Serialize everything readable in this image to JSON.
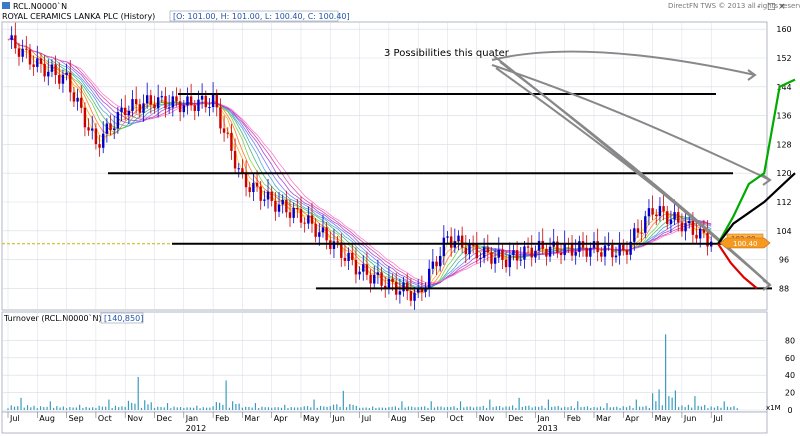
{
  "header": {
    "symbol": "RCL.N0000`N",
    "title": "ROYAL CERAMICS LANKA PLC (History)",
    "ohlc": "[O: 101.00, H: 101.00, L: 100.40, C: 100.40]",
    "watermark": "DirectFN TWS © 2013 all rights reserved",
    "window_controls": [
      "-",
      "□",
      "×"
    ]
  },
  "turnover_panel": {
    "title": "Turnover (RCL.N0000`N)",
    "value": "[140,850]",
    "scale_label": "x1M",
    "y_ticks": [
      0,
      20,
      40,
      60,
      80
    ]
  },
  "annotations": {
    "possibilities_note": "3 Possibilities this quater",
    "price_tags": [
      "102.00",
      "100.40"
    ]
  },
  "colors": {
    "background": "#ffffff",
    "grid": "#d8dbe5",
    "axis": "#a0a6b8",
    "candle_up": "#0000cc",
    "candle_down": "#cc0000",
    "horizontal_lines": "#000000",
    "arrows": "#888888",
    "scenario_up": "#00aa00",
    "scenario_mid": "#000000",
    "scenario_down": "#dd0000",
    "volume": "#3a9bbf",
    "price_tag": "#f59a20"
  },
  "chart_data": [
    {
      "type": "candlestick",
      "title": "ROYAL CERAMICS LANKA PLC (History)",
      "y_ticks": [
        88,
        96,
        104,
        112,
        120,
        128,
        136,
        144,
        152,
        160
      ],
      "ylim": [
        82,
        162
      ],
      "x_months": [
        "Jul",
        "Aug",
        "Sep",
        "Oct",
        "Nov",
        "Dec",
        "Jan",
        "Feb",
        "Mar",
        "Apr",
        "May",
        "Jun",
        "Jul",
        "Aug",
        "Sep",
        "Oct",
        "Nov",
        "Dec",
        "Jan",
        "Feb",
        "Mar",
        "Apr",
        "May",
        "Jun",
        "Jul"
      ],
      "x_years": [
        "2012",
        "2013"
      ],
      "year_start_index": [
        6,
        18
      ],
      "close_by_month": [
        157,
        150,
        146,
        128,
        138,
        140,
        139,
        140,
        118,
        112,
        108,
        101,
        93,
        89,
        86,
        102,
        98,
        96,
        99,
        99,
        99,
        98,
        110,
        106,
        101
      ],
      "support_resistance_levels": [
        142,
        120,
        100.4,
        88
      ],
      "last_close": 100.4,
      "scenarios": [
        {
          "path": [
            100.4,
            108,
            117,
            120,
            144,
            146
          ]
        },
        {
          "path": [
            100.4,
            106,
            109,
            112,
            116,
            120
          ]
        },
        {
          "path": [
            100.4,
            95,
            91,
            88
          ]
        }
      ]
    },
    {
      "type": "bar",
      "title": "Turnover (RCL.N0000`N)",
      "y_ticks": [
        0,
        20,
        40,
        60,
        80
      ],
      "ylim": [
        0,
        92
      ],
      "spikes_by_month": [
        14,
        10,
        6,
        12,
        38,
        8,
        5,
        34,
        8,
        6,
        12,
        22,
        4,
        10,
        10,
        10,
        12,
        14,
        12,
        10,
        8,
        12,
        87,
        16,
        10
      ]
    }
  ]
}
